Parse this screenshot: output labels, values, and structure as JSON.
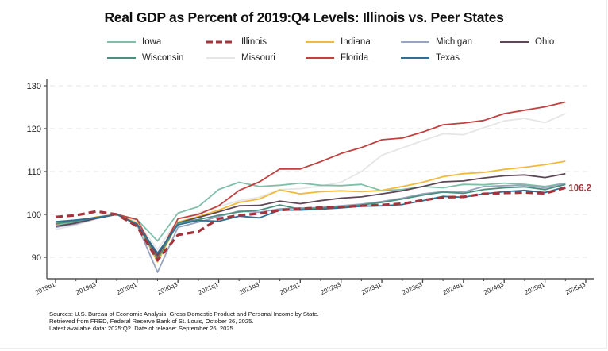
{
  "title": "Real GDP as Percent of 2019:Q4 Levels:  Illinois vs. Peer States",
  "source_lines": [
    "Sources:  U.S. Bureau of Economic Analysis, Gross Domestic Product and Personal Income by State.",
    "Retrieved from FRED, Federal Reserve Bank of St. Louis, October 26, 2025.",
    "Latest available data:  2025:Q2. Date of release:  September 26, 2025."
  ],
  "chart_data": {
    "type": "line",
    "title": "Real GDP as Percent of 2019:Q4 Levels:  Illinois vs. Peer States",
    "xlabel": "",
    "ylabel": "",
    "ylim": [
      85,
      131
    ],
    "yticks": [
      90,
      100,
      110,
      120,
      130
    ],
    "grid": true,
    "legend_position": "top",
    "x": [
      "2019q1",
      "2019q2",
      "2019q3",
      "2019q4",
      "2020q1",
      "2020q2",
      "2020q3",
      "2020q4",
      "2021q1",
      "2021q2",
      "2021q3",
      "2021q4",
      "2022q1",
      "2022q2",
      "2022q3",
      "2022q4",
      "2023q1",
      "2023q2",
      "2023q3",
      "2023q4",
      "2024q1",
      "2024q2",
      "2024q3",
      "2024q4",
      "2025q1",
      "2025q2",
      "2025q3"
    ],
    "xtick_labels": [
      "2019q1",
      "2019q3",
      "2020q1",
      "2020q3",
      "2021q1",
      "2021q3",
      "2022q1",
      "2022q3",
      "2023q1",
      "2023q3",
      "2024q1",
      "2024q3",
      "2025q1",
      "2025q3"
    ],
    "end_label": {
      "series": "Illinois",
      "text": "106.2"
    },
    "series": [
      {
        "name": "Iowa",
        "color": "#7fbfa8",
        "dash": false,
        "values": [
          97.5,
          98.2,
          99.3,
          100.0,
          98.8,
          93.8,
          100.3,
          101.8,
          105.8,
          107.5,
          106.5,
          106.8,
          107.3,
          106.8,
          106.7,
          107.0,
          105.5,
          105.8,
          106.5,
          106.2,
          107.0,
          106.9,
          107.3,
          107.0,
          106.5,
          107.3,
          null
        ]
      },
      {
        "name": "Illinois",
        "color": "#a3343b",
        "dash": true,
        "values": [
          99.4,
          99.8,
          100.7,
          100.0,
          97.2,
          89.3,
          95.2,
          96.0,
          99.0,
          99.8,
          100.2,
          101.0,
          101.3,
          101.6,
          101.7,
          102.0,
          102.2,
          102.5,
          103.3,
          104.0,
          104.1,
          104.8,
          105.0,
          105.1,
          104.9,
          106.2,
          null
        ]
      },
      {
        "name": "Indiana",
        "color": "#f2b93b",
        "dash": false,
        "values": [
          97.8,
          98.5,
          99.4,
          100.0,
          98.0,
          88.9,
          98.2,
          99.5,
          101.0,
          102.8,
          103.6,
          105.7,
          104.8,
          105.3,
          105.5,
          105.3,
          105.6,
          106.5,
          107.5,
          108.8,
          109.5,
          109.8,
          110.5,
          111.0,
          111.6,
          112.4,
          null
        ]
      },
      {
        "name": "Michigan",
        "color": "#98a5c0",
        "dash": false,
        "values": [
          97.0,
          97.8,
          99.0,
          100.0,
          97.5,
          86.5,
          97.0,
          98.2,
          99.5,
          100.8,
          100.5,
          101.3,
          101.5,
          101.6,
          102.0,
          102.4,
          103.0,
          103.8,
          104.8,
          105.3,
          105.2,
          106.5,
          106.7,
          106.8,
          106.2,
          107.3,
          null
        ]
      },
      {
        "name": "Ohio",
        "color": "#5e4657",
        "dash": false,
        "values": [
          97.2,
          98.0,
          99.1,
          100.0,
          97.6,
          90.5,
          98.0,
          99.3,
          100.6,
          102.0,
          102.1,
          103.1,
          102.5,
          103.2,
          103.8,
          104.1,
          104.8,
          105.5,
          106.5,
          107.6,
          107.8,
          108.5,
          109.0,
          109.2,
          108.6,
          109.5,
          null
        ]
      },
      {
        "name": "Wisconsin",
        "color": "#4d8f7e",
        "dash": false,
        "values": [
          97.9,
          98.4,
          99.3,
          100.0,
          97.8,
          89.6,
          98.0,
          98.8,
          99.8,
          100.6,
          101.0,
          102.2,
          101.2,
          101.5,
          101.8,
          102.2,
          102.8,
          103.6,
          104.5,
          105.2,
          104.9,
          105.8,
          106.2,
          106.4,
          105.8,
          107.0,
          null
        ]
      },
      {
        "name": "Missouri",
        "color": "#e6e6e6",
        "dash": false,
        "values": [
          96.5,
          97.5,
          99.0,
          100.0,
          98.3,
          91.8,
          98.8,
          100.3,
          101.8,
          103.2,
          104.0,
          105.8,
          106.0,
          106.6,
          107.5,
          110.0,
          113.8,
          115.5,
          117.2,
          118.8,
          118.6,
          120.2,
          121.8,
          122.4,
          121.4,
          123.5,
          null
        ]
      },
      {
        "name": "Florida",
        "color": "#c2403f",
        "dash": false,
        "values": [
          97.8,
          98.6,
          99.3,
          100.0,
          98.8,
          90.0,
          99.0,
          100.0,
          102.0,
          105.6,
          107.6,
          110.6,
          110.6,
          112.3,
          114.2,
          115.6,
          117.4,
          117.8,
          119.2,
          120.9,
          121.3,
          121.9,
          123.5,
          124.3,
          125.1,
          126.2,
          null
        ]
      },
      {
        "name": "Texas",
        "color": "#2e6f96",
        "dash": false,
        "values": [
          98.3,
          98.7,
          99.2,
          100.0,
          97.7,
          91.0,
          97.6,
          98.6,
          98.4,
          99.6,
          99.2,
          101.0,
          101.0,
          101.2,
          101.5,
          101.9,
          102.0,
          102.3,
          103.2,
          104.2,
          104.0,
          104.8,
          105.3,
          105.6,
          105.1,
          106.4,
          null
        ]
      }
    ]
  }
}
